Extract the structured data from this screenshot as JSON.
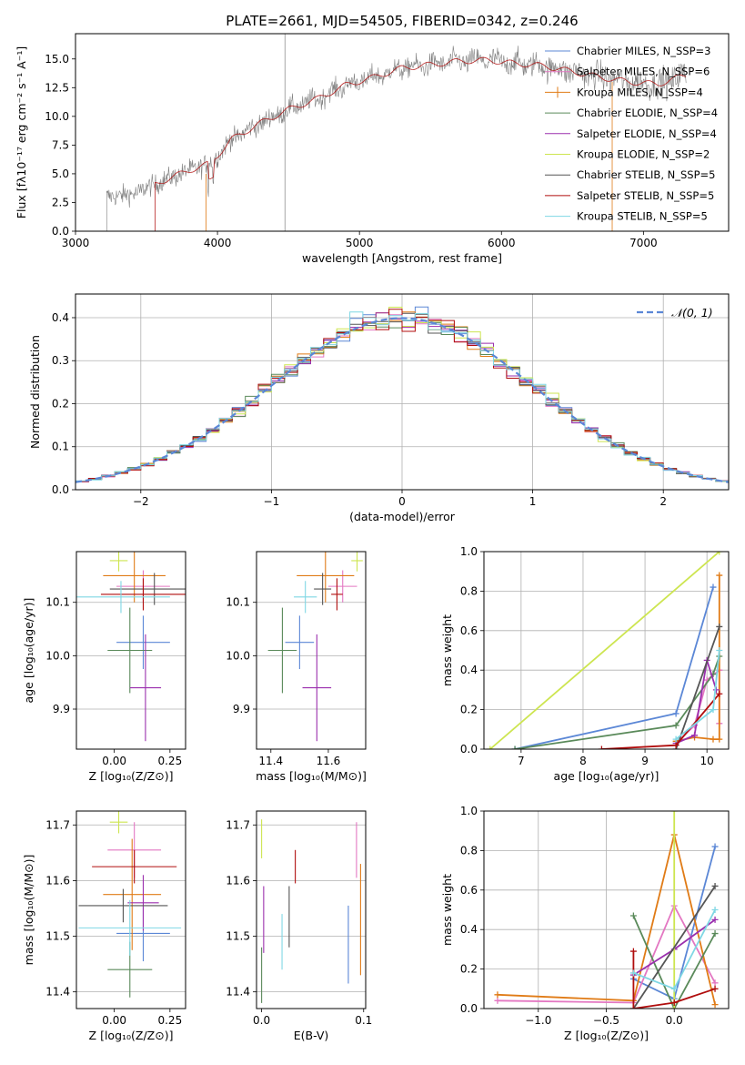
{
  "chart_data": [
    {
      "id": "spectrum",
      "type": "line",
      "title": "PLATE=2661, MJD=54505, FIBERID=0342, z=0.246",
      "xlabel": "wavelength [Angstrom, rest frame]",
      "ylabel": "Flux [fλ10⁻¹⁷ erg cm⁻² s⁻¹ A⁻¹]",
      "xlim": [
        3000,
        7600
      ],
      "ylim": [
        0,
        17.2
      ],
      "xticks": [
        3000,
        4000,
        5000,
        6000,
        7000
      ],
      "yticks": [
        0.0,
        2.5,
        5.0,
        7.5,
        10.0,
        12.5,
        15.0
      ],
      "legend_position": "top-right",
      "legend": [
        {
          "label": "Chabrier MILES, N_SSP=3",
          "color": "#5b87d6"
        },
        {
          "label": "Salpeter MILES, N_SSP=6",
          "color": "#e377c2"
        },
        {
          "label": "Kroupa MILES, N_SSP=4",
          "color": "#e07b16"
        },
        {
          "label": "Chabrier ELODIE, N_SSP=4",
          "color": "#5a8a5a"
        },
        {
          "label": "Salpeter ELODIE, N_SSP=4",
          "color": "#9b2fae"
        },
        {
          "label": "Kroupa ELODIE, N_SSP=2",
          "color": "#cde550"
        },
        {
          "label": "Chabrier STELIB, N_SSP=5",
          "color": "#555555"
        },
        {
          "label": "Salpeter STELIB, N_SSP=5",
          "color": "#b00d0d"
        },
        {
          "label": "Kroupa STELIB, N_SSP=5",
          "color": "#7fd7e4"
        }
      ],
      "continuum": {
        "x": [
          3220,
          3400,
          3600,
          3800,
          3950,
          4100,
          4300,
          4500,
          4700,
          4900,
          5100,
          5300,
          5500,
          5700,
          5900,
          6100,
          6300,
          6500,
          6700,
          6900,
          7100,
          7300
        ],
        "y": [
          3.0,
          3.2,
          4.3,
          5.3,
          5.9,
          8.0,
          9.4,
          10.6,
          11.5,
          12.7,
          13.4,
          14.2,
          14.5,
          14.8,
          14.9,
          14.6,
          14.4,
          13.9,
          13.4,
          13.0,
          12.8,
          13.6
        ]
      }
    },
    {
      "id": "residuals",
      "type": "histogram",
      "xlabel": "(data-model)/error",
      "ylabel": "Normed distribution",
      "xlim": [
        -2.5,
        2.5
      ],
      "ylim": [
        0,
        0.455
      ],
      "xticks": [
        -2,
        -1,
        0,
        1,
        2
      ],
      "yticks": [
        0.0,
        0.1,
        0.2,
        0.3,
        0.4
      ],
      "legend_position": "top-right",
      "legend": [
        {
          "label": "𝒩(0, 1)",
          "color": "#5b87d6",
          "style": "dashed"
        }
      ],
      "bin_width": 0.1,
      "normal_curve": {
        "mean": 0,
        "sigma": 1
      }
    },
    {
      "id": "age-vs-Z",
      "type": "scatter",
      "xlabel": "Z [log₁₀(Z/Z⊙)]",
      "ylabel": "age  [log₁₀(age/yr)]",
      "xlim": [
        -0.17,
        0.32
      ],
      "ylim": [
        9.825,
        10.195
      ],
      "xticks": [
        0.0,
        0.25
      ],
      "xticklabels": [
        "0.00",
        "0.25"
      ],
      "yticks": [
        9.9,
        10.0,
        10.1
      ],
      "points": [
        {
          "color": "#5b87d6",
          "x": 0.13,
          "y": 10.025,
          "xerr": 0.12,
          "yerr": 0.05
        },
        {
          "color": "#e377c2",
          "x": 0.13,
          "y": 10.13,
          "xerr": 0.12,
          "yerr": 0.03
        },
        {
          "color": "#e07b16",
          "x": 0.09,
          "y": 10.15,
          "xerr": 0.14,
          "yerr": 0.05
        },
        {
          "color": "#5a8a5a",
          "x": 0.07,
          "y": 10.01,
          "xerr": 0.1,
          "yerr": 0.08
        },
        {
          "color": "#9b2fae",
          "x": 0.14,
          "y": 9.94,
          "xerr": 0.07,
          "yerr": 0.1
        },
        {
          "color": "#cde550",
          "x": 0.02,
          "y": 10.178,
          "xerr": 0.04,
          "yerr": 0.02
        },
        {
          "color": "#555555",
          "x": 0.18,
          "y": 10.125,
          "xerr": 0.2,
          "yerr": 0.03
        },
        {
          "color": "#b00d0d",
          "x": 0.13,
          "y": 10.115,
          "xerr": 0.19,
          "yerr": 0.03
        },
        {
          "color": "#7fd7e4",
          "x": 0.03,
          "y": 10.11,
          "xerr": 0.22,
          "yerr": 0.03
        }
      ]
    },
    {
      "id": "age-vs-mass",
      "type": "scatter",
      "xlabel": "mass [log₁₀(M/M⊙)]",
      "xlim": [
        11.35,
        11.73
      ],
      "ylim": [
        9.825,
        10.195
      ],
      "xticks": [
        11.4,
        11.6
      ],
      "xticklabels": [
        "11.4",
        "11.6"
      ],
      "yticks": [
        9.9,
        10.0,
        10.1
      ],
      "points": [
        {
          "color": "#5b87d6",
          "x": 11.5,
          "y": 10.025,
          "xerr": 0.05,
          "yerr": 0.05
        },
        {
          "color": "#e377c2",
          "x": 11.65,
          "y": 10.13,
          "xerr": 0.05,
          "yerr": 0.03
        },
        {
          "color": "#e07b16",
          "x": 11.59,
          "y": 10.15,
          "xerr": 0.1,
          "yerr": 0.05
        },
        {
          "color": "#5a8a5a",
          "x": 11.44,
          "y": 10.01,
          "xerr": 0.05,
          "yerr": 0.08
        },
        {
          "color": "#9b2fae",
          "x": 11.56,
          "y": 9.94,
          "xerr": 0.05,
          "yerr": 0.1
        },
        {
          "color": "#cde550",
          "x": 11.7,
          "y": 10.178,
          "xerr": 0.02,
          "yerr": 0.02
        },
        {
          "color": "#555555",
          "x": 11.58,
          "y": 10.125,
          "xerr": 0.03,
          "yerr": 0.03
        },
        {
          "color": "#b00d0d",
          "x": 11.63,
          "y": 10.115,
          "xerr": 0.02,
          "yerr": 0.03
        },
        {
          "color": "#7fd7e4",
          "x": 11.52,
          "y": 10.11,
          "xerr": 0.04,
          "yerr": 0.03
        }
      ]
    },
    {
      "id": "mass-weight-vs-age",
      "type": "line",
      "xlabel": "age  [log₁₀(age/yr)]",
      "ylabel": "mass weight",
      "xlim": [
        6.4,
        10.35
      ],
      "ylim": [
        0,
        1.0
      ],
      "xticks": [
        7,
        8,
        9,
        10
      ],
      "yticks": [
        0.0,
        0.2,
        0.4,
        0.6,
        0.8,
        1.0
      ],
      "grid": true,
      "series": [
        {
          "color": "#5b87d6",
          "x": [
            6.9,
            9.5,
            10.1
          ],
          "y": [
            0.0,
            0.18,
            0.82
          ]
        },
        {
          "color": "#e377c2",
          "x": [
            9.5,
            9.8,
            10.0,
            10.2,
            10.2
          ],
          "y": [
            0.03,
            0.12,
            0.35,
            0.4,
            0.13
          ]
        },
        {
          "color": "#e07b16",
          "x": [
            9.5,
            9.8,
            10.1,
            10.2,
            10.2
          ],
          "y": [
            0.04,
            0.06,
            0.05,
            0.05,
            0.88
          ]
        },
        {
          "color": "#5a8a5a",
          "x": [
            6.9,
            9.5,
            10.1,
            10.2
          ],
          "y": [
            0.0,
            0.12,
            0.38,
            0.47
          ]
        },
        {
          "color": "#9b2fae",
          "x": [
            9.5,
            9.8,
            10.0,
            10.15
          ],
          "y": [
            0.03,
            0.07,
            0.45,
            0.3
          ]
        },
        {
          "color": "#cde550",
          "x": [
            6.5,
            10.2
          ],
          "y": [
            0.0,
            1.0
          ]
        },
        {
          "color": "#555555",
          "x": [
            9.5,
            10.2
          ],
          "y": [
            0.0,
            0.62
          ]
        },
        {
          "color": "#b00d0d",
          "x": [
            8.3,
            9.5,
            10.2
          ],
          "y": [
            0.0,
            0.02,
            0.28
          ]
        },
        {
          "color": "#7fd7e4",
          "x": [
            9.5,
            10.1,
            10.2
          ],
          "y": [
            0.05,
            0.2,
            0.5
          ]
        }
      ]
    },
    {
      "id": "mass-vs-Z",
      "type": "scatter",
      "xlabel": "Z [log₁₀(Z/Z⊙)]",
      "ylabel": "mass [log₁₀(M/M⊙)]",
      "xlim": [
        -0.17,
        0.32
      ],
      "ylim": [
        11.37,
        11.725
      ],
      "xticks": [
        0.0,
        0.25
      ],
      "xticklabels": [
        "0.00",
        "0.25"
      ],
      "yticks": [
        11.4,
        11.5,
        11.6,
        11.7
      ],
      "points": [
        {
          "color": "#5b87d6",
          "x": 0.13,
          "y": 11.505,
          "xerr": 0.12,
          "yerr": 0.05
        },
        {
          "color": "#e377c2",
          "x": 0.09,
          "y": 11.655,
          "xerr": 0.12,
          "yerr": 0.05
        },
        {
          "color": "#e07b16",
          "x": 0.08,
          "y": 11.575,
          "xerr": 0.13,
          "yerr": 0.1
        },
        {
          "color": "#5a8a5a",
          "x": 0.07,
          "y": 11.44,
          "xerr": 0.1,
          "yerr": 0.05
        },
        {
          "color": "#9b2fae",
          "x": 0.13,
          "y": 11.56,
          "xerr": 0.07,
          "yerr": 0.05
        },
        {
          "color": "#cde550",
          "x": 0.02,
          "y": 11.705,
          "xerr": 0.04,
          "yerr": 0.02
        },
        {
          "color": "#555555",
          "x": 0.04,
          "y": 11.555,
          "xerr": 0.2,
          "yerr": 0.03
        },
        {
          "color": "#b00d0d",
          "x": 0.09,
          "y": 11.625,
          "xerr": 0.19,
          "yerr": 0.03
        },
        {
          "color": "#7fd7e4",
          "x": 0.07,
          "y": 11.515,
          "xerr": 0.23,
          "yerr": 0.05
        }
      ]
    },
    {
      "id": "mass-vs-ebv",
      "type": "scatter",
      "xlabel": "E(B-V)",
      "xlim": [
        -0.005,
        0.102
      ],
      "ylim": [
        11.37,
        11.725
      ],
      "xticks": [
        0.0,
        0.1
      ],
      "xticklabels": [
        "0.0",
        "0.1"
      ],
      "yticks": [
        11.4,
        11.5,
        11.6,
        11.7
      ],
      "points": [
        {
          "color": "#5b87d6",
          "x": 0.085,
          "y": 11.485,
          "xerr": 0,
          "yerr": 0.07
        },
        {
          "color": "#e377c2",
          "x": 0.093,
          "y": 11.655,
          "xerr": 0,
          "yerr": 0.05
        },
        {
          "color": "#e07b16",
          "x": 0.097,
          "y": 11.53,
          "xerr": 0,
          "yerr": 0.1
        },
        {
          "color": "#5a8a5a",
          "x": 0.0,
          "y": 11.43,
          "xerr": 0,
          "yerr": 0.05
        },
        {
          "color": "#9b2fae",
          "x": 0.002,
          "y": 11.53,
          "xerr": 0,
          "yerr": 0.06
        },
        {
          "color": "#cde550",
          "x": 0.0,
          "y": 11.675,
          "xerr": 0,
          "yerr": 0.035
        },
        {
          "color": "#555555",
          "x": 0.027,
          "y": 11.535,
          "xerr": 0,
          "yerr": 0.055
        },
        {
          "color": "#b00d0d",
          "x": 0.033,
          "y": 11.625,
          "xerr": 0,
          "yerr": 0.03
        },
        {
          "color": "#7fd7e4",
          "x": 0.02,
          "y": 11.49,
          "xerr": 0,
          "yerr": 0.05
        }
      ]
    },
    {
      "id": "mass-weight-vs-Z",
      "type": "line",
      "xlabel": "Z [log₁₀(Z/Z⊙)]",
      "ylabel": "mass weight",
      "xlim": [
        -1.4,
        0.4
      ],
      "ylim": [
        0,
        1.0
      ],
      "xticks": [
        -1.0,
        -0.5,
        0.0
      ],
      "xticklabels": [
        "−1.0",
        "−0.5",
        "0.0"
      ],
      "yticks": [
        0.0,
        0.2,
        0.4,
        0.6,
        0.8,
        1.0
      ],
      "grid": true,
      "series": [
        {
          "color": "#5b87d6",
          "x": [
            -0.3,
            0.0,
            0.3
          ],
          "y": [
            0.15,
            0.05,
            0.82
          ]
        },
        {
          "color": "#e377c2",
          "x": [
            -1.3,
            -0.3,
            0.0,
            0.3
          ],
          "y": [
            0.04,
            0.03,
            0.52,
            0.13
          ]
        },
        {
          "color": "#e07b16",
          "x": [
            -1.3,
            -0.3,
            0.0,
            0.3
          ],
          "y": [
            0.07,
            0.04,
            0.88,
            0.02
          ]
        },
        {
          "color": "#5a8a5a",
          "x": [
            -0.3,
            0.0,
            0.3
          ],
          "y": [
            0.47,
            0.0,
            0.38
          ]
        },
        {
          "color": "#9b2fae",
          "x": [
            -0.3,
            0.0,
            0.3
          ],
          "y": [
            0.17,
            0.3,
            0.45
          ]
        },
        {
          "color": "#cde550",
          "x": [
            0.0,
            0.0
          ],
          "y": [
            0.0,
            1.0
          ]
        },
        {
          "color": "#555555",
          "x": [
            -0.3,
            0.3
          ],
          "y": [
            0.0,
            0.62
          ]
        },
        {
          "color": "#b00d0d",
          "x": [
            -0.3,
            -0.3,
            0.0,
            0.3
          ],
          "y": [
            0.29,
            0.0,
            0.03,
            0.1
          ]
        },
        {
          "color": "#7fd7e4",
          "x": [
            -0.3,
            0.0,
            0.3
          ],
          "y": [
            0.18,
            0.1,
            0.5
          ]
        }
      ]
    }
  ]
}
